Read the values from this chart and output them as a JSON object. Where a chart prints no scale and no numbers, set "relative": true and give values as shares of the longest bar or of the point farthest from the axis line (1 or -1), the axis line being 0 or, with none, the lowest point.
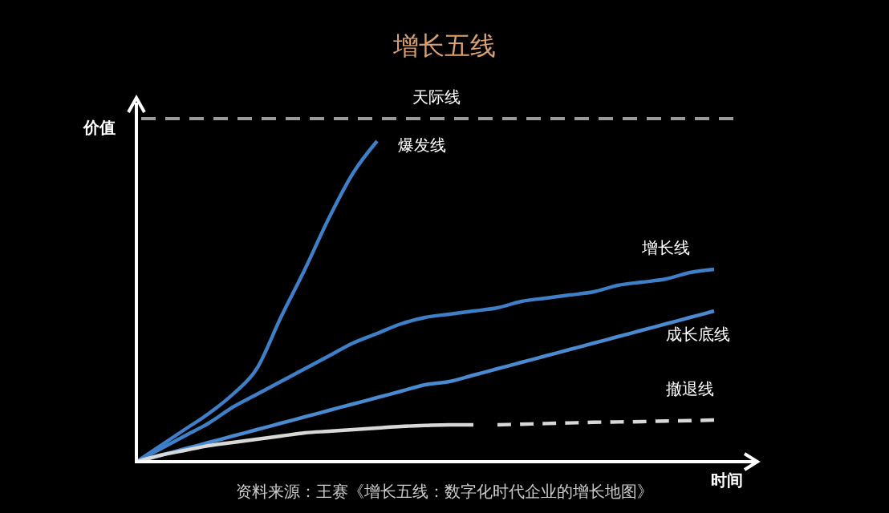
{
  "chart_data": {
    "type": "line",
    "title": "增长五线",
    "xlabel": "时间",
    "ylabel": "价值",
    "relative": true,
    "categories": [
      null,
      null,
      null,
      null,
      null,
      null,
      null,
      null,
      null,
      null,
      null,
      null,
      null,
      null,
      null,
      null,
      null,
      null,
      null,
      null,
      null,
      null,
      null,
      null,
      null
    ],
    "series": [
      {
        "name": "爆发线",
        "color": "#3f7fc8",
        "line_style": "solid",
        "values": [
          0,
          0.05,
          0.1,
          0.15,
          0.21,
          0.29,
          0.45,
          0.6,
          0.76,
          0.9,
          1,
          null,
          null,
          null,
          null,
          null,
          null,
          null,
          null,
          null,
          null,
          null,
          null,
          null,
          null
        ]
      },
      {
        "name": "增长线",
        "color": "#3f7fc8",
        "line_style": "solid",
        "values": [
          0,
          0.04,
          0.08,
          0.12,
          0.17,
          0.21,
          0.25,
          0.29,
          0.33,
          0.37,
          0.4,
          0.43,
          0.45,
          0.46,
          0.47,
          0.48,
          0.5,
          0.51,
          0.52,
          0.53,
          0.55,
          0.56,
          0.57,
          0.59,
          0.6
        ]
      },
      {
        "name": "成长底线",
        "color": "#4a8ad0",
        "line_style": "solid",
        "values": [
          0,
          0.02,
          0.04,
          0.06,
          0.08,
          0.1,
          0.12,
          0.14,
          0.16,
          0.18,
          0.2,
          0.22,
          0.24,
          0.25,
          0.27,
          0.29,
          0.31,
          0.33,
          0.35,
          0.37,
          0.39,
          0.41,
          0.43,
          0.45,
          0.47
        ]
      },
      {
        "color": "#d8d8d8",
        "line_style": "solid",
        "values": [
          0,
          0.02,
          0.035,
          0.05,
          0.06,
          0.07,
          0.08,
          0.09,
          0.095,
          0.1,
          0.105,
          0.11,
          0.113,
          0.115,
          0.115,
          null,
          null,
          null,
          null,
          null,
          null,
          null,
          null,
          null,
          null
        ]
      },
      {
        "name": "撤退线",
        "color": "#d8d8d8",
        "line_style": "dashed",
        "values": [
          null,
          null,
          null,
          null,
          null,
          null,
          null,
          null,
          null,
          null,
          null,
          null,
          null,
          null,
          null,
          0.115,
          0.117,
          0.119,
          0.121,
          0.123,
          0.124,
          0.125,
          0.127,
          0.128,
          0.13
        ]
      }
    ],
    "ref_lines": [
      {
        "axis": "y",
        "value": 1.07,
        "label": "天际线",
        "color": "#9a9a9a",
        "line_style": "dashed"
      }
    ],
    "annotations": [
      "资料来源：王赛《增长五线：数字化时代企业的增长地图》"
    ]
  }
}
